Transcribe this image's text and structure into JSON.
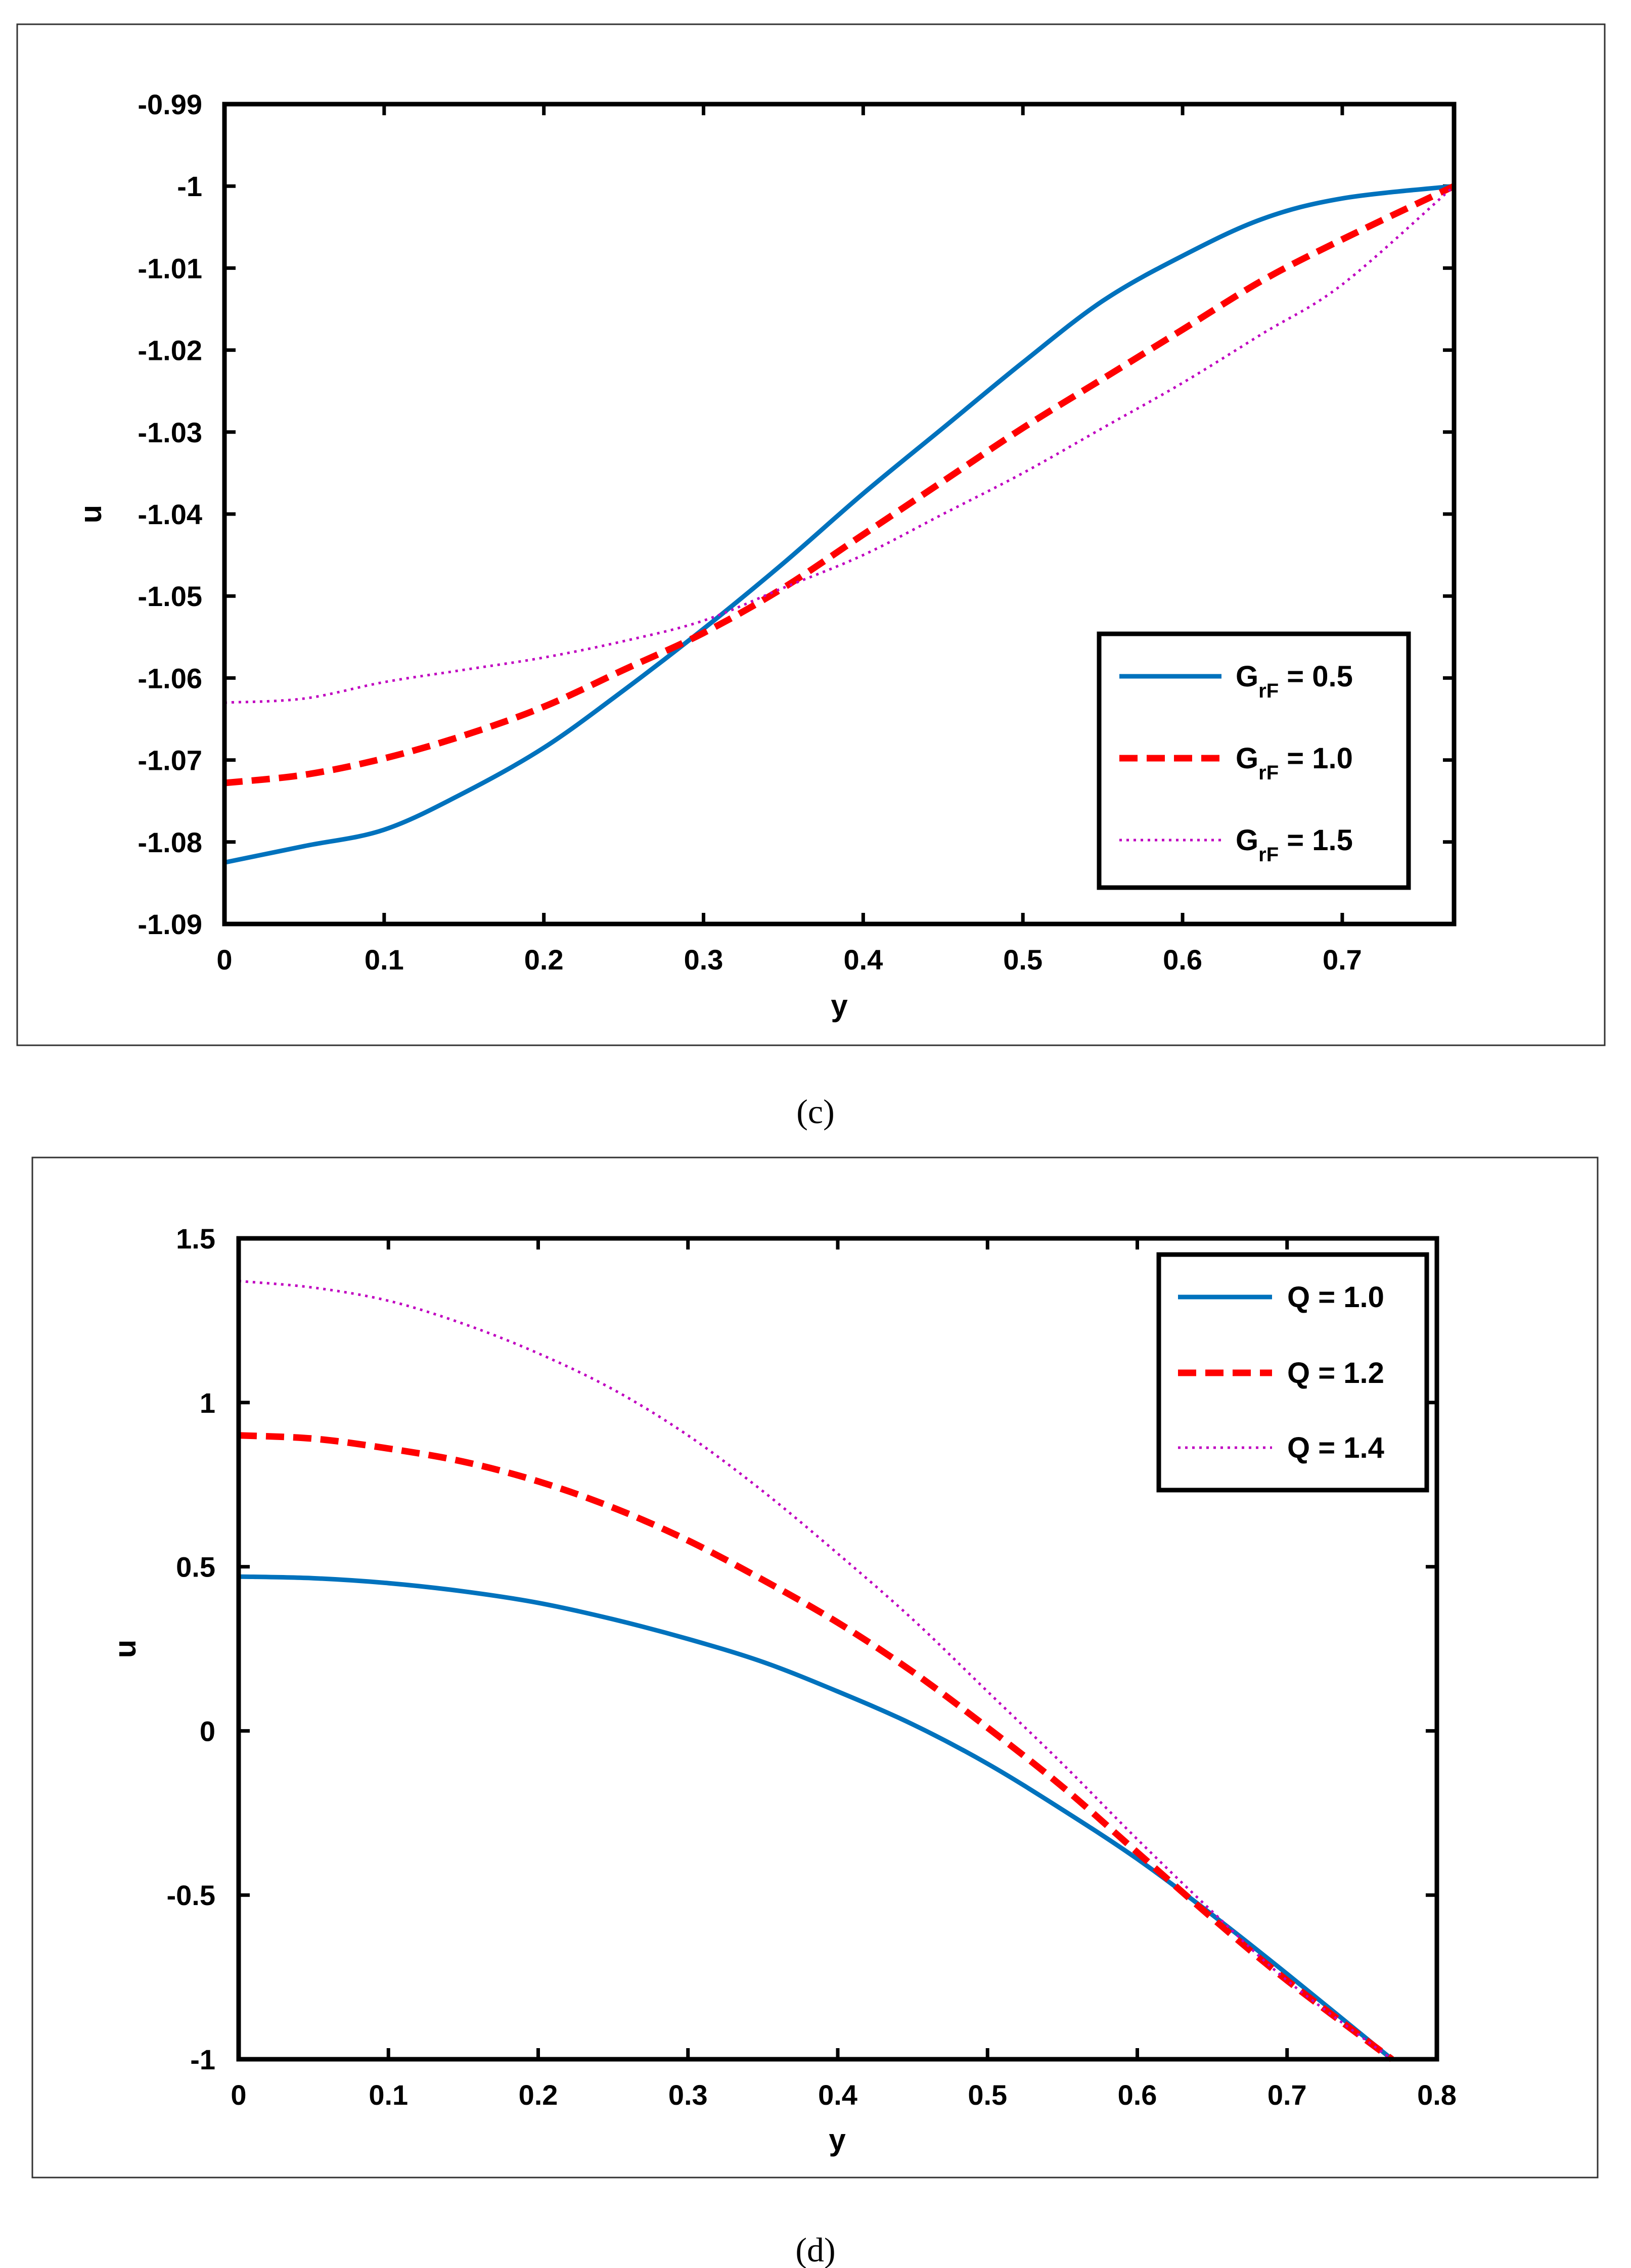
{
  "panels": [
    {
      "caption": "(c)",
      "chart_data": {
        "type": "line",
        "title": "",
        "xlabel": "y",
        "ylabel": "u",
        "xlim": [
          0,
          0.77
        ],
        "ylim": [
          -1.09,
          -0.99
        ],
        "xticks": [
          0,
          0.1,
          0.2,
          0.3,
          0.4,
          0.5,
          0.6,
          0.7
        ],
        "xtick_labels": [
          "0",
          "0.1",
          "0.2",
          "0.3",
          "0.4",
          "0.5",
          "0.6",
          "0.7"
        ],
        "yticks": [
          -0.99,
          -1,
          -1.01,
          -1.02,
          -1.03,
          -1.04,
          -1.05,
          -1.06,
          -1.07,
          -1.08,
          -1.09
        ],
        "ytick_labels": [
          "-0.99",
          "-1",
          "-1.01",
          "-1.02",
          "-1.03",
          "-1.04",
          "-1.05",
          "-1.06",
          "-1.07",
          "-1.08",
          "-1.09"
        ],
        "legend_position": "lower-right",
        "series": [
          {
            "name": "G_rF = 0.5",
            "label_main": "G",
            "label_sub": "rF",
            "label_rest": " = 0.5",
            "style": "solid",
            "color": "#0072BD",
            "x": [
              0,
              0.05,
              0.1,
              0.15,
              0.2,
              0.25,
              0.3,
              0.35,
              0.4,
              0.45,
              0.5,
              0.55,
              0.6,
              0.65,
              0.7,
              0.77
            ],
            "y": [
              -1.0825,
              -1.0805,
              -1.0785,
              -1.074,
              -1.0685,
              -1.0615,
              -1.054,
              -1.046,
              -1.0375,
              -1.0295,
              -1.0215,
              -1.014,
              -1.0085,
              -1.004,
              -1.0015,
              -1.0
            ]
          },
          {
            "name": "G_rF = 1.0",
            "label_main": "G",
            "label_sub": "rF",
            "label_rest": " = 1.0",
            "style": "dashed",
            "color": "#FF0000",
            "x": [
              0,
              0.05,
              0.1,
              0.15,
              0.2,
              0.25,
              0.3,
              0.35,
              0.4,
              0.45,
              0.5,
              0.55,
              0.6,
              0.65,
              0.7,
              0.77
            ],
            "y": [
              -1.0728,
              -1.0718,
              -1.0698,
              -1.067,
              -1.0635,
              -1.059,
              -1.0545,
              -1.049,
              -1.0425,
              -1.036,
              -1.0295,
              -1.0235,
              -1.0175,
              -1.0115,
              -1.0065,
              -1.0
            ]
          },
          {
            "name": "G_rF = 1.5",
            "label_main": "G",
            "label_sub": "rF",
            "label_rest": " = 1.5",
            "style": "dotted",
            "color": "#C000C0",
            "x": [
              0,
              0.05,
              0.1,
              0.15,
              0.2,
              0.25,
              0.3,
              0.35,
              0.4,
              0.45,
              0.5,
              0.55,
              0.6,
              0.65,
              0.7,
              0.77
            ],
            "y": [
              -1.063,
              -1.0625,
              -1.0605,
              -1.059,
              -1.0575,
              -1.0555,
              -1.053,
              -1.049,
              -1.045,
              -1.04,
              -1.035,
              -1.0295,
              -1.024,
              -1.018,
              -1.012,
              -1.0
            ]
          }
        ]
      }
    },
    {
      "caption": "(d)",
      "chart_data": {
        "type": "line",
        "title": "",
        "xlabel": "y",
        "ylabel": "u",
        "xlim": [
          0,
          0.8
        ],
        "ylim": [
          -1,
          1.5
        ],
        "xticks": [
          0,
          0.1,
          0.2,
          0.3,
          0.4,
          0.5,
          0.6,
          0.7,
          0.8
        ],
        "xtick_labels": [
          "0",
          "0.1",
          "0.2",
          "0.3",
          "0.4",
          "0.5",
          "0.6",
          "0.7",
          "0.8"
        ],
        "yticks": [
          1.5,
          1,
          0.5,
          0,
          -0.5,
          -1
        ],
        "ytick_labels": [
          "1.5",
          "1",
          "0.5",
          "0",
          "-0.5",
          "-1"
        ],
        "legend_position": "top-right",
        "series": [
          {
            "name": "Q = 1.0",
            "label_main": "Q = 1.0",
            "label_sub": "",
            "label_rest": "",
            "style": "solid",
            "color": "#0072BD",
            "x": [
              0,
              0.05,
              0.1,
              0.15,
              0.2,
              0.25,
              0.3,
              0.35,
              0.4,
              0.45,
              0.5,
              0.55,
              0.6,
              0.65,
              0.7,
              0.77
            ],
            "y": [
              0.47,
              0.465,
              0.45,
              0.425,
              0.39,
              0.34,
              0.28,
              0.21,
              0.12,
              0.02,
              -0.1,
              -0.24,
              -0.39,
              -0.56,
              -0.74,
              -1.0
            ]
          },
          {
            "name": "Q = 1.2",
            "label_main": "Q = 1.2",
            "label_sub": "",
            "label_rest": "",
            "style": "dashed",
            "color": "#FF0000",
            "x": [
              0,
              0.05,
              0.1,
              0.15,
              0.2,
              0.25,
              0.3,
              0.35,
              0.4,
              0.45,
              0.5,
              0.55,
              0.6,
              0.65,
              0.7,
              0.77
            ],
            "y": [
              0.9,
              0.89,
              0.86,
              0.82,
              0.76,
              0.68,
              0.58,
              0.46,
              0.33,
              0.18,
              0.01,
              -0.17,
              -0.37,
              -0.57,
              -0.76,
              -1.0
            ]
          },
          {
            "name": "Q = 1.4",
            "label_main": "Q = 1.4",
            "label_sub": "",
            "label_rest": "",
            "style": "dotted",
            "color": "#C000C0",
            "x": [
              0,
              0.05,
              0.1,
              0.15,
              0.2,
              0.25,
              0.3,
              0.35,
              0.4,
              0.45,
              0.5,
              0.55,
              0.6,
              0.65,
              0.7,
              0.77
            ],
            "y": [
              1.37,
              1.35,
              1.31,
              1.24,
              1.15,
              1.04,
              0.9,
              0.73,
              0.54,
              0.34,
              0.12,
              -0.1,
              -0.33,
              -0.55,
              -0.76,
              -1.0
            ]
          }
        ]
      }
    }
  ]
}
